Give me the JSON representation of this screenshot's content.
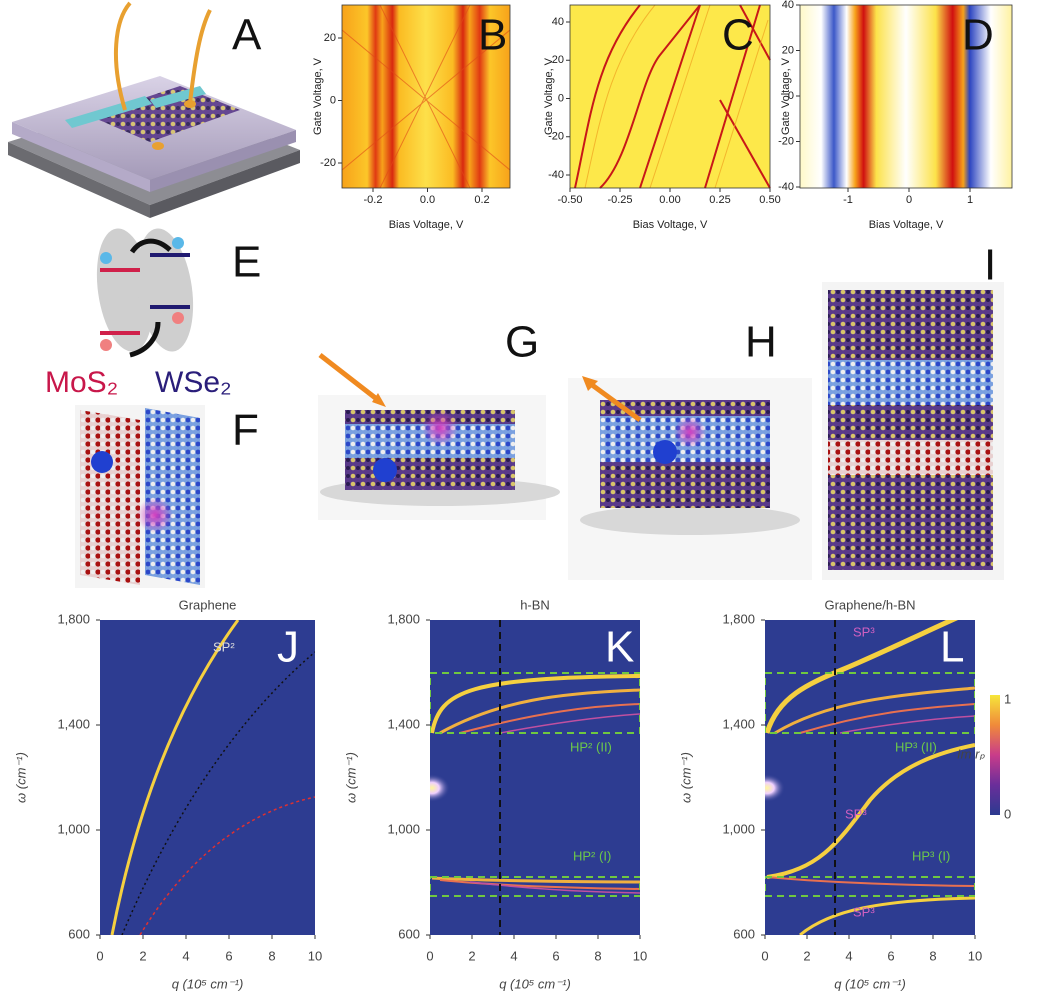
{
  "panels": {
    "A": "A",
    "B": "B",
    "C": "C",
    "D": "D",
    "E": "E",
    "F": "F",
    "G": "G",
    "H": "H",
    "I": "I",
    "J": "J",
    "K": "K",
    "L": "L"
  },
  "molecules": {
    "left": "MoS₂",
    "right": "WSe₂"
  },
  "plots": {
    "B": {
      "xlabel": "Bias Voltage, V",
      "ylabel": "Gate Voltage, V",
      "xticks": [
        "-0.2",
        "0.0",
        "0.2"
      ],
      "yticks": [
        "20",
        "0",
        "-20"
      ]
    },
    "C": {
      "xlabel": "Bias Voltage, V",
      "ylabel": "Gate Voltage, V",
      "xticks": [
        "-0.50",
        "-0.25",
        "0.00",
        "0.25",
        "0.50"
      ],
      "yticks": [
        "40",
        "20",
        "0",
        "-20",
        "-40"
      ]
    },
    "D": {
      "xlabel": "Bias Voltage, V",
      "ylabel": "Gate Voltage, V",
      "xticks": [
        "-1",
        "0",
        "1"
      ],
      "yticks": [
        "40",
        "20",
        "0",
        "-20",
        "-40"
      ]
    },
    "J": {
      "title": "Graphene",
      "xlabel": "q (10⁵ cm⁻¹)",
      "ylabel": "ω (cm⁻¹)",
      "xticks": [
        "0",
        "2",
        "4",
        "6",
        "8",
        "10"
      ],
      "yticks": [
        "1,800",
        "1,400",
        "1,000",
        "600"
      ],
      "annotations": [
        "SP²"
      ]
    },
    "K": {
      "title": "h-BN",
      "xlabel": "q (10⁵ cm⁻¹)",
      "ylabel": "ω (cm⁻¹)",
      "xticks": [
        "0",
        "2",
        "4",
        "6",
        "8",
        "10"
      ],
      "yticks": [
        "1,800",
        "1,400",
        "1,000",
        "600"
      ],
      "annotations": [
        "HP² (II)",
        "HP² (I)"
      ]
    },
    "L": {
      "title": "Graphene/h-BN",
      "xlabel": "q (10⁵ cm⁻¹)",
      "ylabel": "ω (cm⁻¹)",
      "xticks": [
        "0",
        "2",
        "4",
        "6",
        "8",
        "10"
      ],
      "yticks": [
        "1,800",
        "1,400",
        "1,000",
        "600"
      ],
      "annotations": [
        "SP³",
        "HP³ (II)",
        "SP³",
        "HP³ (I)",
        "SP³"
      ]
    }
  },
  "colorbar": {
    "label": "Im rₚ",
    "ticks": [
      "1",
      "0"
    ]
  }
}
